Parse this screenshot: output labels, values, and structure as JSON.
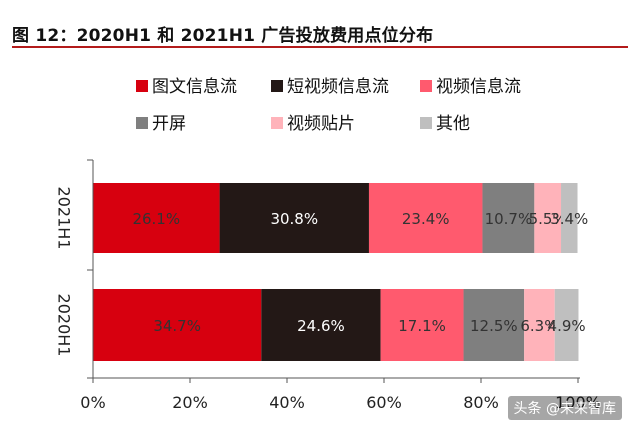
{
  "title": "图 12：2020H1 和 2021H1 广告投放费用点位分布",
  "watermark": "头条 @未来智库",
  "chart_data": {
    "type": "bar",
    "orientation": "horizontal",
    "stacked": true,
    "categories": [
      "2021H1",
      "2020H1"
    ],
    "xlim": [
      0,
      100
    ],
    "xticks": [
      "0%",
      "20%",
      "40%",
      "60%",
      "80%",
      "100%"
    ],
    "legend_position": "top",
    "series": [
      {
        "name": "图文信息流",
        "color": "#d7000f",
        "values": [
          26.1,
          34.7
        ],
        "labels": [
          "26.1%",
          "34.7%"
        ],
        "label_color": "#333333"
      },
      {
        "name": "短视频信息流",
        "color": "#231816",
        "values": [
          30.8,
          24.6
        ],
        "labels": [
          "30.8%",
          "24.6%"
        ],
        "label_color": "#ffffff"
      },
      {
        "name": "视频信息流",
        "color": "#ff5a6e",
        "values": [
          23.4,
          17.1
        ],
        "labels": [
          "23.4%",
          "17.1%"
        ],
        "label_color": "#333333"
      },
      {
        "name": "开屏",
        "color": "#7f7f7f",
        "values": [
          10.7,
          12.5
        ],
        "labels": [
          "10.7%",
          "12.5%"
        ],
        "label_color": "#333333"
      },
      {
        "name": "视频贴片",
        "color": "#ffb3ba",
        "values": [
          5.5,
          6.3
        ],
        "labels": [
          "5.5%",
          "6.3%"
        ],
        "label_color": "#333333"
      },
      {
        "name": "其他",
        "color": "#bfbfbf",
        "values": [
          3.4,
          4.9
        ],
        "labels": [
          "3.4%",
          "4.9%"
        ],
        "label_color": "#333333"
      }
    ]
  }
}
